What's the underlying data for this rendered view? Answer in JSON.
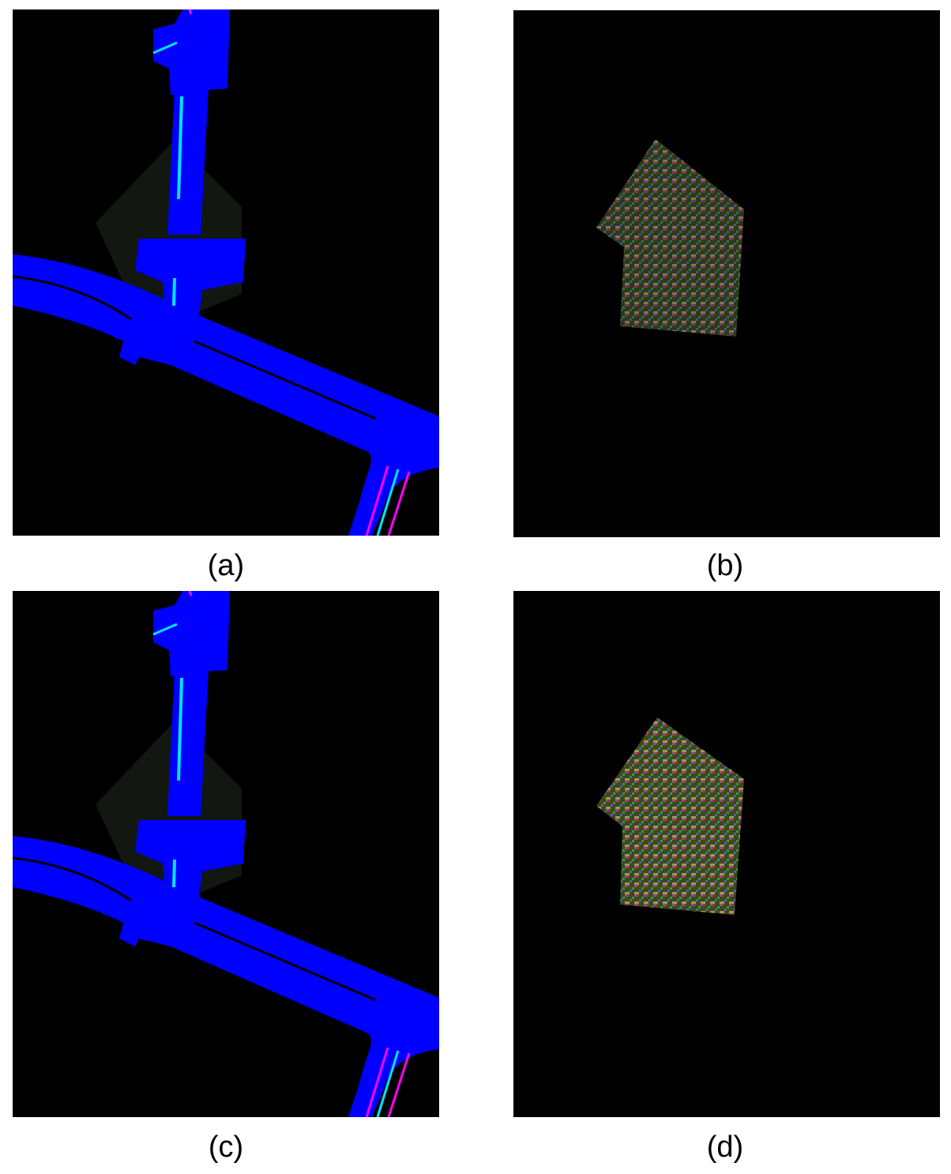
{
  "figure": {
    "panels": [
      {
        "id": "a",
        "caption": "(a)",
        "content": "road-map"
      },
      {
        "id": "b",
        "caption": "(b)",
        "content": "noise-patch"
      },
      {
        "id": "c",
        "caption": "(c)",
        "content": "road-map"
      },
      {
        "id": "d",
        "caption": "(d)",
        "content": "noise-patch"
      }
    ]
  },
  "colors": {
    "background": "#000000",
    "road": "#0000ff",
    "lane_cyan": "#00e5ff",
    "lane_magenta": "#ff00ff",
    "shadow": "#141a14"
  }
}
